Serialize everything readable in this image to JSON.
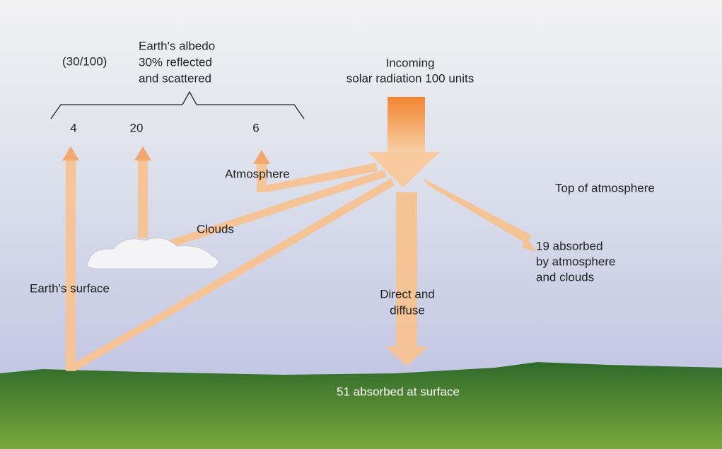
{
  "albedo": {
    "ratio": "(30/100)",
    "lines": [
      "Earth's albedo",
      "30% reflected",
      "and scattered"
    ]
  },
  "incoming": {
    "lines": [
      "Incoming",
      "solar radiation 100 units"
    ]
  },
  "reflected": {
    "surface": "4",
    "clouds": "20",
    "atmosphere": "6"
  },
  "labels": {
    "atmosphere": "Atmosphere",
    "top": "Top of atmosphere",
    "clouds": "Clouds",
    "surface": "Earth's surface"
  },
  "absorbed_atmosphere": {
    "lines": [
      "19 absorbed",
      "by atmosphere",
      "and clouds"
    ]
  },
  "direct": {
    "lines": [
      "Direct and",
      "diffuse"
    ]
  },
  "absorbed_surface": "51 absorbed at surface"
}
